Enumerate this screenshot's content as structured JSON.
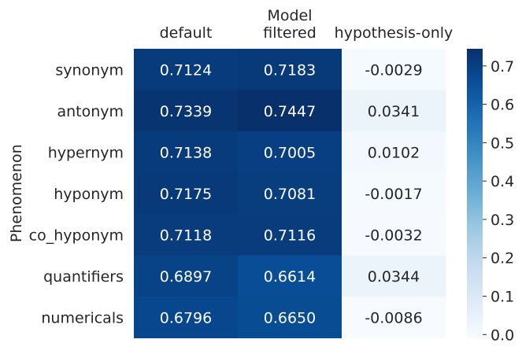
{
  "chart_data": {
    "type": "heatmap",
    "xlabel": "Model",
    "ylabel": "Phenomenon",
    "columns": [
      "default",
      "filtered",
      "hypothesis-only"
    ],
    "rows": [
      "synonym",
      "antonym",
      "hypernym",
      "hyponym",
      "co_hyponym",
      "quantifiers",
      "numericals"
    ],
    "values": [
      [
        0.7124,
        0.7183,
        -0.0029
      ],
      [
        0.7339,
        0.7447,
        0.0341
      ],
      [
        0.7138,
        0.7005,
        0.0102
      ],
      [
        0.7175,
        0.7081,
        -0.0017
      ],
      [
        0.7118,
        0.7116,
        -0.0032
      ],
      [
        0.6897,
        0.6614,
        0.0344
      ],
      [
        0.6796,
        0.665,
        -0.0086
      ]
    ],
    "value_format": "4 decimals",
    "colormap": "Blues",
    "colorbar": {
      "ticks": [
        "0.0",
        "0.1",
        "0.2",
        "0.3",
        "0.4",
        "0.5",
        "0.6",
        "0.7"
      ],
      "range": [
        -0.0086,
        0.7447
      ]
    }
  }
}
